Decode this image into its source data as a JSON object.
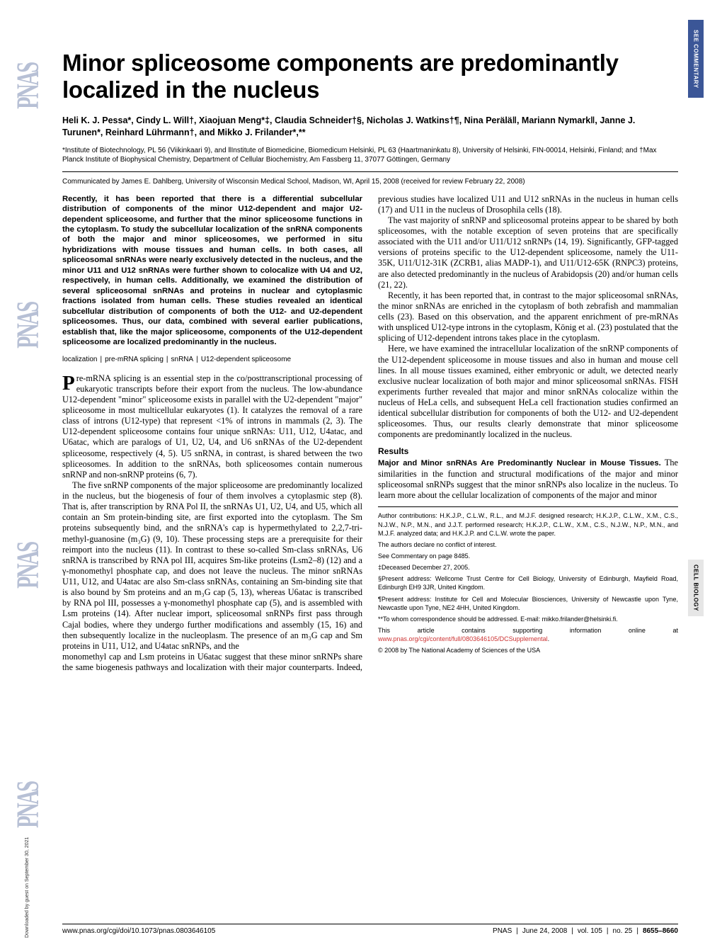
{
  "side_tabs": {
    "top": "SEE COMMENTARY",
    "mid": "CELL BIOLOGY"
  },
  "pnas_logo_text": "PNAS",
  "title": "Minor spliceosome components are predominantly localized in the nucleus",
  "authors": "Heli K. J. Pessa*, Cindy L. Will†, Xiaojuan Meng*‡, Claudia Schneider†§, Nicholas J. Watkins†¶, Nina Perälä‖, Mariann Nymark‖, Janne J. Turunen*, Reinhard Lührmann†, and Mikko J. Frilander*,**",
  "affiliations": "*Institute of Biotechnology, PL 56 (Viikinkaari 9), and ‖Institute of Biomedicine, Biomedicum Helsinki, PL 63 (Haartmaninkatu 8), University of Helsinki, FIN-00014, Helsinki, Finland; and †Max Planck Institute of Biophysical Chemistry, Department of Cellular Biochemistry, Am Fassberg 11, 37077 Göttingen, Germany",
  "communicated": "Communicated by James E. Dahlberg, University of Wisconsin Medical School, Madison, WI, April 15, 2008 (received for review February 22, 2008)",
  "abstract": "Recently, it has been reported that there is a differential subcellular distribution of components of the minor U12-dependent and major U2-dependent spliceosome, and further that the minor spliceosome functions in the cytoplasm. To study the subcellular localization of the snRNA components of both the major and minor spliceosomes, we performed in situ hybridizations with mouse tissues and human cells. In both cases, all spliceosomal snRNAs were nearly exclusively detected in the nucleus, and the minor U11 and U12 snRNAs were further shown to colocalize with U4 and U2, respectively, in human cells. Additionally, we examined the distribution of several spliceosomal snRNAs and proteins in nuclear and cytoplasmic fractions isolated from human cells. These studies revealed an identical subcellular distribution of components of both the U12- and U2-dependent spliceosomes. Thus, our data, combined with several earlier publications, establish that, like the major spliceosome, components of the U12-dependent spliceosome are localized predominantly in the nucleus.",
  "keywords": [
    "localization",
    "pre-mRNA splicing",
    "snRNA",
    "U12-dependent spliceosome"
  ],
  "dropcap": "P",
  "para1": "re-mRNA splicing is an essential step in the co/posttranscriptional processing of eukaryotic transcripts before their export from the nucleus. The low-abundance U12-dependent \"minor\" spliceosome exists in parallel with the U2-dependent \"major\" spliceosome in most multicellular eukaryotes (1). It catalyzes the removal of a rare class of introns (U12-type) that represent <1% of introns in mammals (2, 3). The U12-dependent spliceosome contains four unique snRNAs: U11, U12, U4atac, and U6atac, which are paralogs of U1, U2, U4, and U6 snRNAs of the U2-dependent spliceosome, respectively (4, 5). U5 snRNA, in contrast, is shared between the two spliceosomes. In addition to the snRNAs, both spliceosomes contain numerous snRNP and non-snRNP proteins (6, 7).",
  "para2": "The five snRNP components of the major spliceosome are predominantly localized in the nucleus, but the biogenesis of four of them involves a cytoplasmic step (8). That is, after transcription by RNA Pol II, the snRNAs U1, U2, U4, and U5, which all contain an Sm protein-binding site, are first exported into the cytoplasm. The Sm proteins subsequently bind, and the snRNA's cap is hypermethylated to 2,2,7-tri-methyl-guanosine (m₃G) (9, 10). These processing steps are a prerequisite for their reimport into the nucleus (11). In contrast to these so-called Sm-class snRNAs, U6 snRNA is transcribed by RNA pol III, acquires Sm-like proteins (Lsm2–8) (12) and a γ-monomethyl phosphate cap, and does not leave the nucleus. The minor snRNAs U11, U12, and U4atac are also Sm-class snRNAs, containing an Sm-binding site that is also bound by Sm proteins and an m₃G cap (5, 13), whereas U6atac is transcribed by RNA pol III, possesses a γ-monomethyl phosphate cap (5), and is assembled with Lsm proteins (14). After nuclear import, spliceosomal snRNPs first pass through Cajal bodies, where they undergo further modifications and assembly (15, 16) and then subsequently localize in the nucleoplasm. The presence of an m₃G cap and Sm proteins in U11, U12, and U4atac snRNPs, and the",
  "para3": "monomethyl cap and Lsm proteins in U6atac suggest that these minor snRNPs share the same biogenesis pathways and localization with their major counterparts. Indeed, previous studies have localized U11 and U12 snRNAs in the nucleus in human cells (17) and U11 in the nucleus of Drosophila cells (18).",
  "para4": "The vast majority of snRNP and spliceosomal proteins appear to be shared by both spliceosomes, with the notable exception of seven proteins that are specifically associated with the U11 and/or U11/U12 snRNPs (14, 19). Significantly, GFP-tagged versions of proteins specific to the U12-dependent spliceosome, namely the U11-35K, U11/U12-31K (ZCRB1, alias MADP-1), and U11/U12-65K (RNPC3) proteins, are also detected predominantly in the nucleus of Arabidopsis (20) and/or human cells (21, 22).",
  "para5": "Recently, it has been reported that, in contrast to the major spliceosomal snRNAs, the minor snRNAs are enriched in the cytoplasm of both zebrafish and mammalian cells (23). Based on this observation, and the apparent enrichment of pre-mRNAs with unspliced U12-type introns in the cytoplasm, König et al. (23) postulated that the splicing of U12-dependent introns takes place in the cytoplasm.",
  "para6": "Here, we have examined the intracellular localization of the snRNP components of the U12-dependent spliceosome in mouse tissues and also in human and mouse cell lines. In all mouse tissues examined, either embryonic or adult, we detected nearly exclusive nuclear localization of both major and minor spliceosomal snRNAs. FISH experiments further revealed that major and minor snRNAs colocalize within the nucleus of HeLa cells, and subsequent HeLa cell fractionation studies confirmed an identical subcellular distribution for components of both the U12- and U2-dependent spliceosomes. Thus, our results clearly demonstrate that minor spliceosome components are predominantly localized in the nucleus.",
  "results_head": "Results",
  "results_runin": "Major and Minor snRNAs Are Predominantly Nuclear in Mouse Tissues.",
  "results_para": " The similarities in the function and structural modifications of the major and minor spliceosomal snRNPs suggest that the minor snRNPs also localize in the nucleus. To learn more about the cellular localization of components of the major and minor",
  "footnotes": {
    "contrib": "Author contributions: H.K.J.P., C.L.W., R.L., and M.J.F. designed research; H.K.J.P., C.L.W., X.M., C.S., N.J.W., N.P., M.N., and J.J.T. performed research; H.K.J.P., C.L.W., X.M., C.S., N.J.W., N.P., M.N., and M.J.F. analyzed data; and H.K.J.P. and C.L.W. wrote the paper.",
    "coi": "The authors declare no conflict of interest.",
    "commentary": "See Commentary on page 8485.",
    "deceased": "‡Deceased December 27, 2005.",
    "addr1": "§Present address: Wellcome Trust Centre for Cell Biology, University of Edinburgh, Mayfield Road, Edinburgh EH9 3JR, United Kingdom.",
    "addr2": "¶Present address: Institute for Cell and Molecular Biosciences, University of Newcastle upon Tyne, Newcastle upon Tyne, NE2 4HH, United Kingdom.",
    "corr": "**To whom correspondence should be addressed. E-mail: mikko.frilander@helsinki.fi.",
    "si_pre": "This article contains supporting information online at ",
    "si_link": "www.pnas.org/cgi/content/full/0803646105/DCSupplemental",
    "si_post": ".",
    "copyright": "© 2008 by The National Academy of Sciences of the USA"
  },
  "footer": {
    "left": "www.pnas.org/cgi/doi/10.1073/pnas.0803646105",
    "journal": "PNAS",
    "date": "June 24, 2008",
    "vol": "vol. 105",
    "no": "no. 25",
    "pages": "8655–8660"
  },
  "download_note": "Downloaded by guest on September 30, 2021"
}
